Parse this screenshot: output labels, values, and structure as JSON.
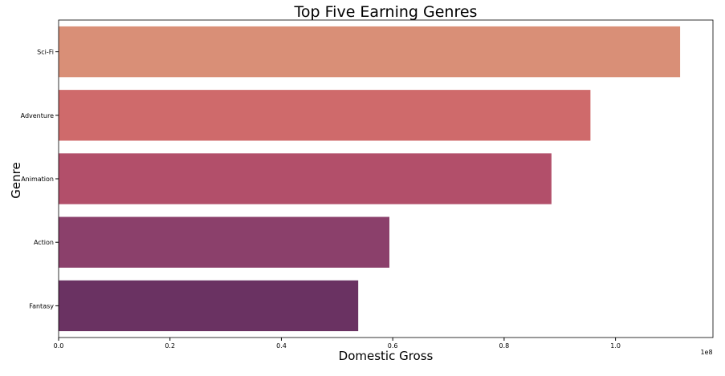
{
  "chart_data": {
    "type": "bar",
    "orientation": "horizontal",
    "title": "Top Five Earning Genres",
    "xlabel": "Domestic Gross",
    "ylabel": "Genre",
    "x_offset_label": "1e8",
    "categories": [
      "Sci-Fi",
      "Adventure",
      "Animation",
      "Action",
      "Fantasy"
    ],
    "values": [
      111600000,
      95500000,
      88500000,
      59400000,
      53800000
    ],
    "xlim": [
      0,
      117500000
    ],
    "xticks": [
      0,
      20000000,
      40000000,
      60000000,
      80000000,
      100000000
    ],
    "xtick_labels": [
      "0.0",
      "0.2",
      "0.4",
      "0.6",
      "0.8",
      "1.0"
    ],
    "colors": [
      "#d98f77",
      "#cf6a6b",
      "#b24f6a",
      "#8b406b",
      "#6a3262"
    ],
    "grid": false,
    "legend": "none"
  }
}
